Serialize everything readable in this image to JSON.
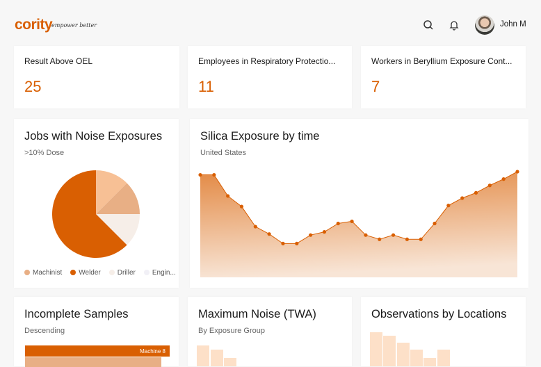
{
  "header": {
    "logo": "cority",
    "tagline": "empower better",
    "user_name": "John M",
    "icons": [
      "search-icon",
      "bell-icon"
    ]
  },
  "kpis": [
    {
      "title": "Result Above OEL",
      "value": "25"
    },
    {
      "title": "Employees in Respiratory Protectio...",
      "value": "11"
    },
    {
      "title": "Workers in Beryllium Exposure Cont...",
      "value": "7"
    }
  ],
  "colors": {
    "accent": "#d95f02",
    "medium": "#e8af85",
    "light": "#f7c095",
    "pale": "#f6eee8",
    "bar_light": "#fde0c8"
  },
  "chart_data": [
    {
      "type": "pie",
      "title": "Jobs with Noise Exposures",
      "subtitle": ">10% Dose",
      "slices": [
        {
          "value": 12.5,
          "color": "#f7c095"
        },
        {
          "value": 12.5,
          "color": "#e8af85"
        },
        {
          "value": 12.5,
          "color": "#f6eee8"
        },
        {
          "value": 62.5,
          "color": "#d95f02"
        }
      ],
      "legend": [
        {
          "label": "Machinist",
          "color": "#e8af85"
        },
        {
          "label": "Welder",
          "color": "#d95f02"
        },
        {
          "label": "Driller",
          "color": "#f6eee8"
        },
        {
          "label": "Engin...",
          "color": "#f1f0f6"
        }
      ],
      "legend_position": "bottom"
    },
    {
      "type": "area",
      "title": "Silica Exposure by time",
      "subtitle": "United States",
      "values": [
        97,
        97,
        77,
        67,
        48,
        41,
        32,
        32,
        40,
        43,
        51,
        53,
        40,
        36,
        40,
        36,
        36,
        51,
        68,
        75,
        80,
        87,
        93,
        100
      ],
      "ylim": [
        0,
        100
      ],
      "grid": false
    },
    {
      "type": "bar",
      "orientation": "horizontal",
      "title": "Incomplete Samples",
      "subtitle": "Descending",
      "categories": [
        "Machine 8",
        ""
      ],
      "values": [
        100,
        94
      ]
    },
    {
      "type": "bar",
      "title": "Maximum Noise (TWA)",
      "subtitle": "By Exposure Group",
      "values": [
        100,
        80,
        40
      ]
    },
    {
      "type": "bar",
      "title": "Observations by Locations",
      "values": [
        100,
        90,
        70,
        48,
        25,
        48
      ]
    }
  ]
}
